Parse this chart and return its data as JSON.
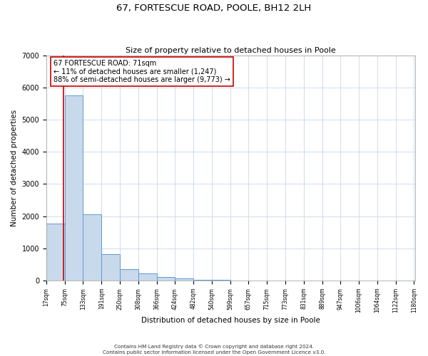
{
  "title": "67, FORTESCUE ROAD, POOLE, BH12 2LH",
  "subtitle": "Size of property relative to detached houses in Poole",
  "xlabel": "Distribution of detached houses by size in Poole",
  "ylabel": "Number of detached properties",
  "bin_labels": [
    "17sqm",
    "75sqm",
    "133sqm",
    "191sqm",
    "250sqm",
    "308sqm",
    "366sqm",
    "424sqm",
    "482sqm",
    "540sqm",
    "599sqm",
    "657sqm",
    "715sqm",
    "773sqm",
    "831sqm",
    "889sqm",
    "947sqm",
    "1006sqm",
    "1064sqm",
    "1122sqm",
    "1180sqm"
  ],
  "bar_heights": [
    1780,
    5750,
    2050,
    830,
    350,
    220,
    105,
    60,
    30,
    18,
    10,
    5,
    3,
    0,
    0,
    0,
    0,
    0,
    0,
    0
  ],
  "bar_color": "#c9d9ec",
  "bar_edge_color": "#5b9bd5",
  "property_line_x": 71,
  "property_line_color": "#cc0000",
  "annotation_text": "67 FORTESCUE ROAD: 71sqm\n← 11% of detached houses are smaller (1,247)\n88% of semi-detached houses are larger (9,773) →",
  "annotation_box_color": "#ffffff",
  "annotation_box_edge": "#cc0000",
  "footer_text": "Contains HM Land Registry data © Crown copyright and database right 2024.\nContains public sector information licensed under the Open Government Licence v3.0.",
  "ylim": [
    0,
    7000
  ],
  "xlim_min": 17,
  "xlim_max": 1180,
  "bin_width": 58,
  "bins_start": 17,
  "yticks": [
    0,
    1000,
    2000,
    3000,
    4000,
    5000,
    6000,
    7000
  ]
}
